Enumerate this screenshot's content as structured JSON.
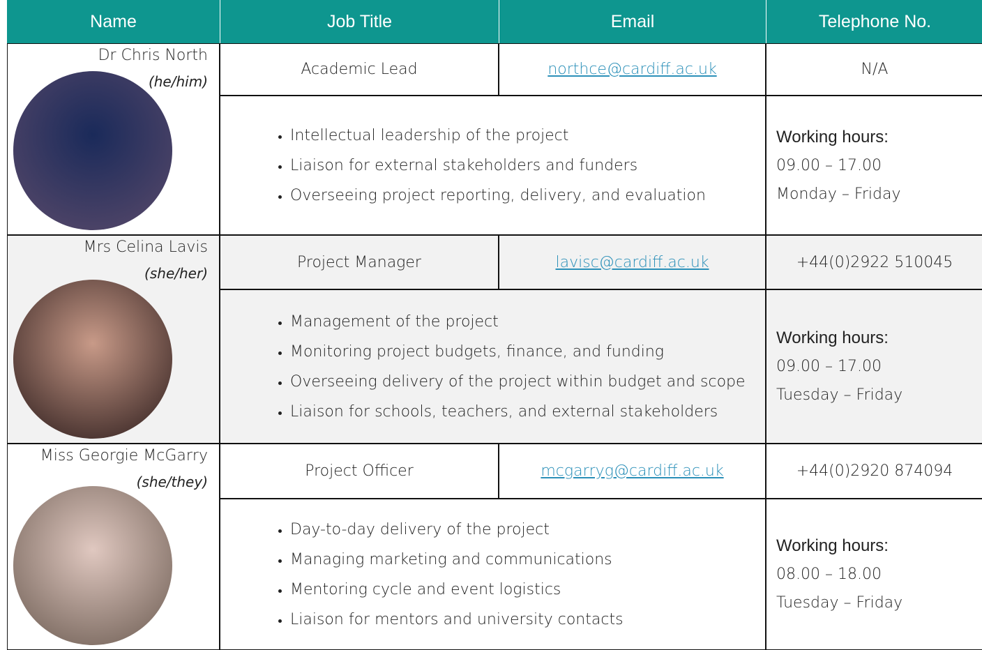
{
  "header": [
    "Name",
    "Job Title",
    "Email",
    "Telephone No."
  ],
  "people": [
    {
      "name": "Dr Chris North",
      "pronouns": "(he/him)",
      "job_title": "Academic Lead",
      "email": "northce@cardiff.ac.uk",
      "telephone": "N/A",
      "duties": [
        "Intellectual leadership of the project",
        "Liaison for external stakeholders and funders",
        "Overseeing project reporting, delivery, and evaluation"
      ],
      "hours_label": "Working hours:",
      "hours": "09.00 – 17.00",
      "days": "Monday – Friday"
    },
    {
      "name": "Mrs Celina Lavis",
      "pronouns": "(she/her)",
      "job_title": "Project Manager",
      "email": "lavisc@cardiff.ac.uk",
      "telephone": "+44(0)2922 510045",
      "duties": [
        "Management of the project",
        "Monitoring project budgets, finance, and funding",
        "Overseeing delivery of the project within budget and scope",
        "Liaison for schools, teachers, and external stakeholders"
      ],
      "hours_label": "Working hours:",
      "hours": "09.00 – 17.00",
      "days": "Tuesday – Friday"
    },
    {
      "name": "Miss Georgie McGarry",
      "pronouns": "(she/they)",
      "job_title": "Project Officer",
      "email": "mcgarryg@cardiff.ac.uk",
      "telephone": "+44(0)2920 874094",
      "duties": [
        "Day-to-day delivery of the project",
        "Managing marketing and communications",
        "Mentoring cycle and event logistics",
        "Liaison for mentors and university contacts"
      ],
      "hours_label": "Working hours:",
      "hours": "08.00 – 18.00",
      "days": "Tuesday – Friday"
    }
  ]
}
